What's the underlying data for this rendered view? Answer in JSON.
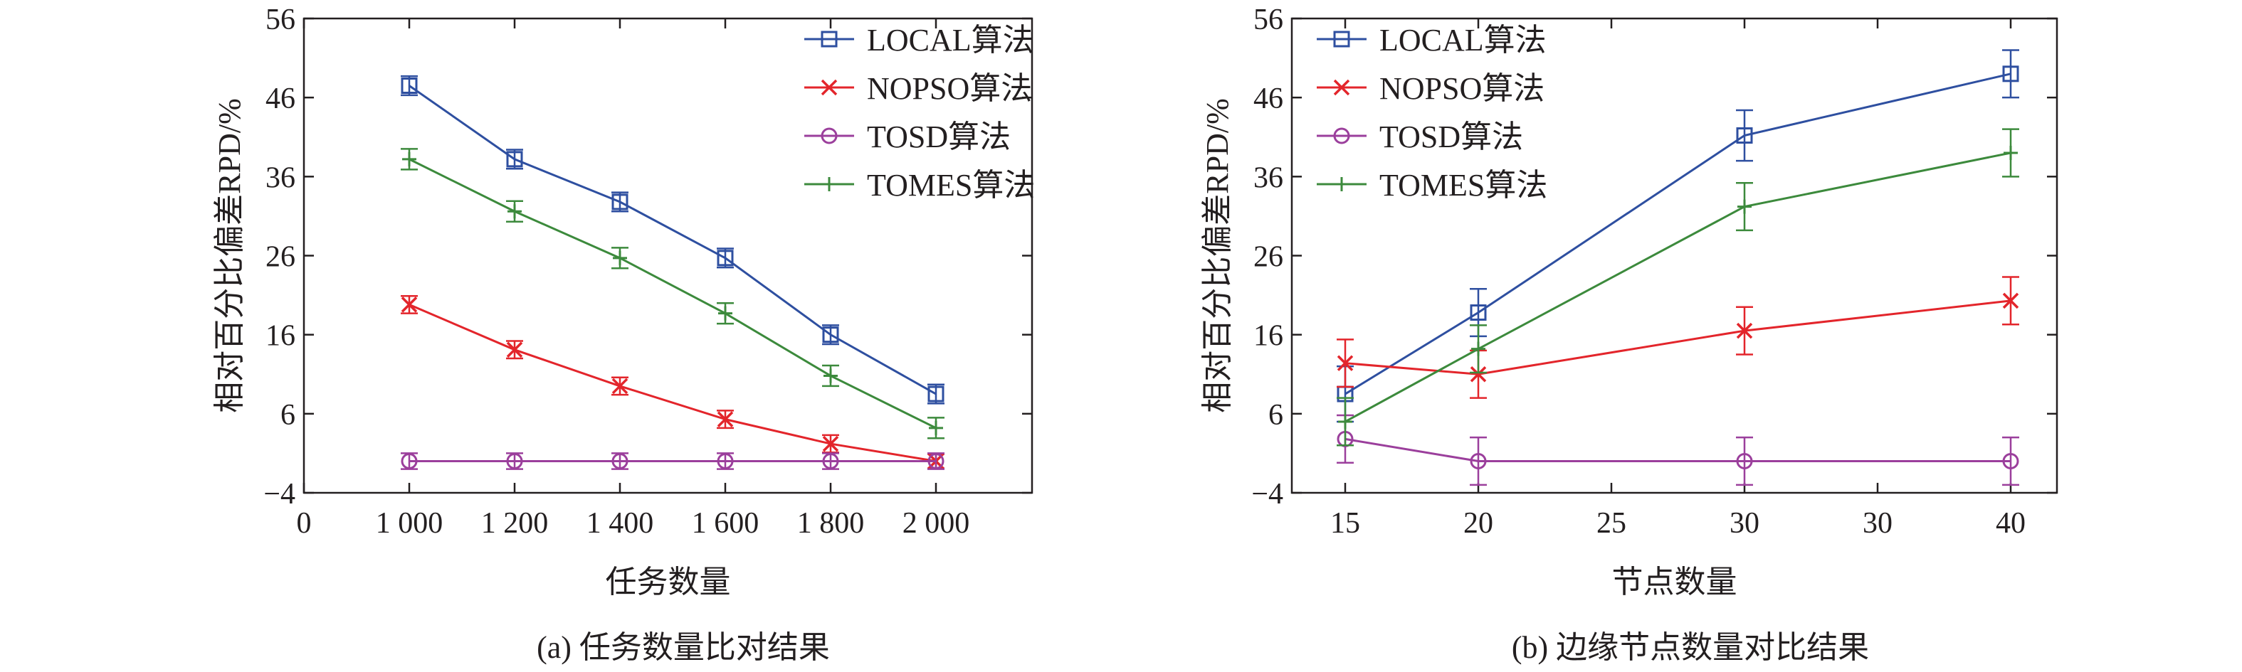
{
  "colors": {
    "local": "#2e4fa0",
    "nopso": "#e3252b",
    "tosd": "#9b3f9c",
    "tomes": "#3c8a3c",
    "axis": "#231f20"
  },
  "chart_data": [
    {
      "type": "line",
      "caption": "(a)  任务数量比对结果",
      "title": "",
      "xlabel": "任务数量",
      "ylabel": "相对百分比偏差RPD/%",
      "ylim": [
        -4,
        56
      ],
      "yticks": [
        -4,
        6,
        16,
        26,
        36,
        46,
        56
      ],
      "ytick_labels": [
        "−4",
        "6",
        "16",
        "26",
        "36",
        "46",
        "56"
      ],
      "xticks": [
        "0",
        "1 000",
        "1 200",
        "1 400",
        "1 600",
        "1 800",
        "2 000"
      ],
      "categories": [
        "1 000",
        "1 200",
        "1 400",
        "1 600",
        "1 800",
        "2 000"
      ],
      "legend_position": "top-right",
      "grid": false,
      "series": [
        {
          "key": "local",
          "name": "LOCAL算法",
          "marker": "square",
          "values": [
            47.5,
            38.2,
            32.8,
            25.7,
            16.0,
            8.5
          ],
          "errors": [
            1.2,
            1.2,
            1.2,
            1.2,
            1.2,
            1.2
          ]
        },
        {
          "key": "nopso",
          "name": "NOPSO算法",
          "marker": "x",
          "values": [
            19.8,
            14.1,
            9.5,
            5.3,
            2.2,
            0.0
          ],
          "errors": [
            1.1,
            1.1,
            1.1,
            1.1,
            1.1,
            0.9
          ]
        },
        {
          "key": "tosd",
          "name": "TOSD算法",
          "marker": "circle",
          "values": [
            0.0,
            0.0,
            0.0,
            0.0,
            0.0,
            0.0
          ],
          "errors": [
            1.0,
            1.0,
            1.0,
            1.0,
            1.0,
            1.0
          ]
        },
        {
          "key": "tomes",
          "name": "TOMES算法",
          "marker": "plus",
          "values": [
            38.2,
            31.6,
            25.7,
            18.7,
            10.8,
            4.2
          ],
          "errors": [
            1.3,
            1.3,
            1.3,
            1.3,
            1.3,
            1.3
          ]
        }
      ]
    },
    {
      "type": "line",
      "caption": "(b)  边缘节点数量对比结果",
      "title": "",
      "xlabel": "节点数量",
      "ylabel": "相对百分比偏差RPD/%",
      "ylim": [
        -4,
        56
      ],
      "yticks": [
        -4,
        6,
        16,
        26,
        36,
        46,
        56
      ],
      "ytick_labels": [
        "−4",
        "6",
        "16",
        "26",
        "36",
        "46",
        "56"
      ],
      "xticks": [
        "15",
        "20",
        "25",
        "30",
        "30",
        "40"
      ],
      "categories": [
        "15",
        "20",
        "30",
        "40"
      ],
      "category_tick_index": [
        0,
        1,
        3,
        5
      ],
      "legend_position": "top-left",
      "grid": false,
      "series": [
        {
          "key": "local",
          "name": "LOCAL算法",
          "marker": "square",
          "values": [
            8.5,
            18.8,
            41.2,
            49.0
          ],
          "errors": [
            3.5,
            3.0,
            3.2,
            3.0
          ]
        },
        {
          "key": "nopso",
          "name": "NOPSO算法",
          "marker": "x",
          "values": [
            12.4,
            11.0,
            16.5,
            20.3
          ],
          "errors": [
            3.0,
            3.0,
            3.0,
            3.0
          ]
        },
        {
          "key": "tosd",
          "name": "TOSD算法",
          "marker": "circle",
          "values": [
            2.8,
            0.0,
            0.0,
            0.0
          ],
          "errors": [
            3.0,
            3.0,
            3.0,
            3.0
          ]
        },
        {
          "key": "tomes",
          "name": "TOMES算法",
          "marker": "plus",
          "values": [
            5.0,
            14.2,
            32.2,
            39.0
          ],
          "errors": [
            3.0,
            3.0,
            3.0,
            3.0
          ]
        }
      ]
    }
  ]
}
